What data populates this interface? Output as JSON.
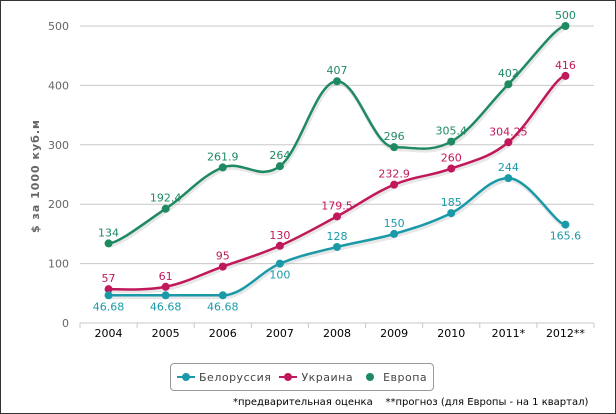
{
  "chart_data": {
    "type": "line",
    "title": "",
    "xlabel": "",
    "ylabel": "$ за 1000 куб.м",
    "ylim": [
      0,
      500
    ],
    "yticks": [
      0,
      100,
      200,
      300,
      400,
      500
    ],
    "grid": true,
    "smooth": true,
    "categories": [
      "2004",
      "2005",
      "2006",
      "2007",
      "2008",
      "2009",
      "2010",
      "2011*",
      "2012**"
    ],
    "series": [
      {
        "name": "Белоруссия",
        "color": "#1a9aa8",
        "values": [
          46.68,
          46.68,
          46.68,
          100,
          128,
          150,
          185,
          244,
          165.6
        ],
        "labels": [
          "46.68",
          "46.68",
          "46.68",
          "100",
          "128",
          "150",
          "185",
          "244",
          "165.6"
        ],
        "label_pos": [
          "below",
          "below",
          "below",
          "below",
          "above",
          "above",
          "above",
          "above",
          "below"
        ]
      },
      {
        "name": "Украина",
        "color": "#c0185a",
        "values": [
          57,
          61,
          95,
          130,
          179.5,
          232.9,
          260,
          304.25,
          416
        ],
        "labels": [
          "57",
          "61",
          "95",
          "130",
          "179.5",
          "232.9",
          "260",
          "304.25",
          "416"
        ],
        "label_pos": [
          "above",
          "above",
          "above",
          "above",
          "above",
          "above",
          "above",
          "above",
          "above"
        ]
      },
      {
        "name": "Европа",
        "color": "#1f8a62",
        "values": [
          134,
          192.4,
          261.9,
          264,
          407,
          296,
          305.4,
          402,
          500
        ],
        "labels": [
          "134",
          "192.4",
          "261.9",
          "264",
          "407",
          "296",
          "305.4",
          "402",
          "500"
        ],
        "label_pos": [
          "above",
          "above",
          "above",
          "above",
          "above",
          "above",
          "above",
          "above",
          "above"
        ]
      }
    ],
    "legend": "bottom-center",
    "footnote": "*предварительная оценка    **прогноз (для Европы - на 1 квартал)"
  }
}
